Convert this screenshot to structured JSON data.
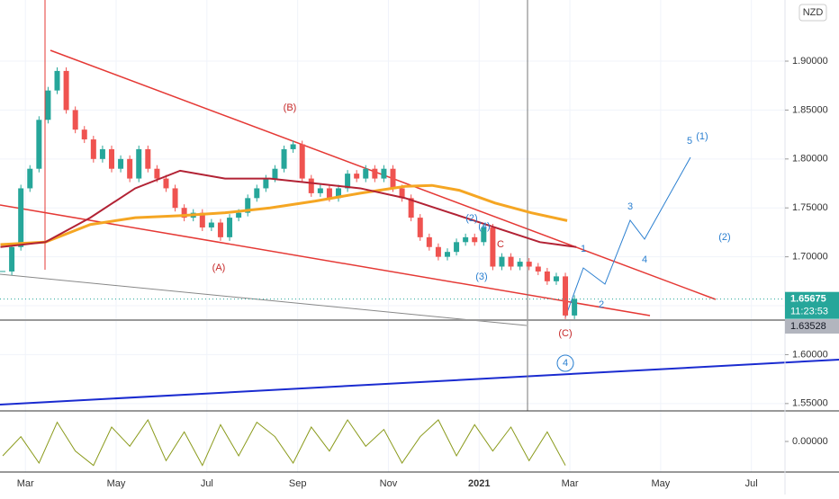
{
  "chart_data": {
    "type": "candlestick",
    "currency": "NZD",
    "xlim": [
      -0.56,
      16.74
    ],
    "xticks": [
      {
        "value": 0,
        "label": "Mar"
      },
      {
        "value": 2,
        "label": "May"
      },
      {
        "value": 4,
        "label": "Jul"
      },
      {
        "value": 6,
        "label": "Sep"
      },
      {
        "value": 8,
        "label": "Nov"
      },
      {
        "value": 10,
        "label": "2021",
        "bold": true
      },
      {
        "value": 12,
        "label": "Mar"
      },
      {
        "value": 14,
        "label": "May"
      },
      {
        "value": 16,
        "label": "Jul"
      }
    ],
    "ylim": [
      1.5425,
      1.9625
    ],
    "yticks": [
      {
        "value": 1.55,
        "label": "1.55000"
      },
      {
        "value": 1.6,
        "label": "1.60000"
      },
      {
        "value": 1.65,
        "label": "1.65000"
      },
      {
        "value": 1.7,
        "label": "1.70000"
      },
      {
        "value": 1.75,
        "label": "1.75000"
      },
      {
        "value": 1.8,
        "label": "1.80000"
      },
      {
        "value": 1.85,
        "label": "1.85000"
      },
      {
        "value": 1.9,
        "label": "1.90000"
      }
    ],
    "up_color": "#26a69a",
    "down_color": "#ef5350",
    "x": [
      -0.5,
      -0.3,
      -0.1,
      0.1,
      0.3,
      0.5,
      0.7,
      0.9,
      1.1,
      1.3,
      1.5,
      1.7,
      1.9,
      2.1,
      2.3,
      2.5,
      2.7,
      2.9,
      3.1,
      3.3,
      3.5,
      3.7,
      3.9,
      4.1,
      4.3,
      4.5,
      4.7,
      4.9,
      5.1,
      5.3,
      5.5,
      5.7,
      5.9,
      6.1,
      6.3,
      6.5,
      6.7,
      6.9,
      7.1,
      7.3,
      7.5,
      7.7,
      7.9,
      8.1,
      8.3,
      8.5,
      8.7,
      8.9,
      9.1,
      9.3,
      9.5,
      9.7,
      9.9,
      10.1,
      10.3,
      10.5,
      10.7,
      10.9,
      11.1,
      11.3,
      11.5,
      11.7,
      11.9,
      12.1
    ],
    "close": [
      1.685,
      1.71,
      1.77,
      1.79,
      1.84,
      1.87,
      1.89,
      1.85,
      1.83,
      1.82,
      1.8,
      1.81,
      1.79,
      1.8,
      1.78,
      1.81,
      1.79,
      1.78,
      1.77,
      1.75,
      1.74,
      1.745,
      1.73,
      1.735,
      1.72,
      1.74,
      1.745,
      1.76,
      1.77,
      1.78,
      1.79,
      1.81,
      1.815,
      1.78,
      1.765,
      1.77,
      1.76,
      1.77,
      1.785,
      1.78,
      1.79,
      1.78,
      1.79,
      1.77,
      1.76,
      1.74,
      1.72,
      1.71,
      1.7,
      1.705,
      1.715,
      1.72,
      1.715,
      1.73,
      1.69,
      1.7,
      1.69,
      1.695,
      1.69,
      1.685,
      1.675,
      1.68,
      1.64,
      1.657
    ],
    "moving_averages": [
      {
        "color": "#f5a623",
        "width": 3,
        "x": [
          -0.55,
          0.44,
          1.43,
          2.42,
          3.41,
          4.4,
          5.39,
          6.39,
          7.38,
          8.37,
          8.96,
          9.56,
          10.35,
          11.15,
          11.94
        ],
        "values": [
          1.7125,
          1.715,
          1.733,
          1.74,
          1.742,
          1.745,
          1.75,
          1.757,
          1.765,
          1.772,
          1.773,
          1.768,
          1.755,
          1.745,
          1.737
        ]
      },
      {
        "color": "#b22234",
        "width": 2,
        "x": [
          -0.55,
          0.44,
          1.43,
          2.42,
          3.41,
          4.4,
          5.39,
          6.39,
          7.38,
          8.37,
          9.36,
          10.35,
          11.34,
          12.14
        ],
        "values": [
          1.71,
          1.715,
          1.74,
          1.77,
          1.788,
          1.78,
          1.78,
          1.775,
          1.77,
          1.76,
          1.745,
          1.73,
          1.715,
          1.71
        ]
      }
    ],
    "last_price": 1.65675,
    "countdown": "11:23:53",
    "level": 1.63528,
    "oscillator": {
      "color": "#8a9a1b",
      "ylim": [
        -0.6,
        0.6
      ],
      "yticks": [
        {
          "value": 0,
          "label": "0.00000"
        }
      ],
      "x": [
        -0.5,
        -0.1,
        0.3,
        0.7,
        1.1,
        1.5,
        1.9,
        2.3,
        2.7,
        3.1,
        3.5,
        3.9,
        4.3,
        4.7,
        5.1,
        5.5,
        5.9,
        6.3,
        6.7,
        7.1,
        7.5,
        7.9,
        8.3,
        8.7,
        9.1,
        9.5,
        9.9,
        10.3,
        10.7,
        11.1,
        11.5,
        11.9
      ],
      "values": [
        -0.3,
        0.1,
        -0.45,
        0.4,
        -0.2,
        -0.5,
        0.3,
        -0.1,
        0.45,
        -0.4,
        0.2,
        -0.5,
        0.35,
        -0.3,
        0.4,
        0.1,
        -0.45,
        0.3,
        -0.2,
        0.45,
        -0.1,
        0.25,
        -0.45,
        0.1,
        0.45,
        -0.3,
        0.35,
        -0.2,
        0.3,
        -0.4,
        0.2,
        -0.5
      ]
    },
    "annotations": [
      {
        "text": "(B)",
        "color": "#c62828"
      },
      {
        "text": "(A)",
        "color": "#c62828"
      },
      {
        "text": "(C)",
        "color": "#c62828"
      },
      {
        "text": "1",
        "color": "#2a7fd0"
      },
      {
        "text": "2",
        "color": "#2a7fd0"
      },
      {
        "text": "3",
        "color": "#2a7fd0"
      },
      {
        "text": "4",
        "color": "#2a7fd0"
      },
      {
        "text": "5",
        "color": "#2a7fd0"
      },
      {
        "text": "(1)",
        "color": "#2a7fd0"
      },
      {
        "text": "(2)",
        "color": "#2a7fd0"
      },
      {
        "text": "4",
        "color": "#2a7fd0"
      },
      {
        "text": "(2)",
        "color": "#2a7fd0"
      },
      {
        "text": "(4)",
        "color": "#2a7fd0"
      },
      {
        "text": "(3)",
        "color": "#2a7fd0"
      },
      {
        "text": "C",
        "color": "#c62828"
      }
    ]
  }
}
